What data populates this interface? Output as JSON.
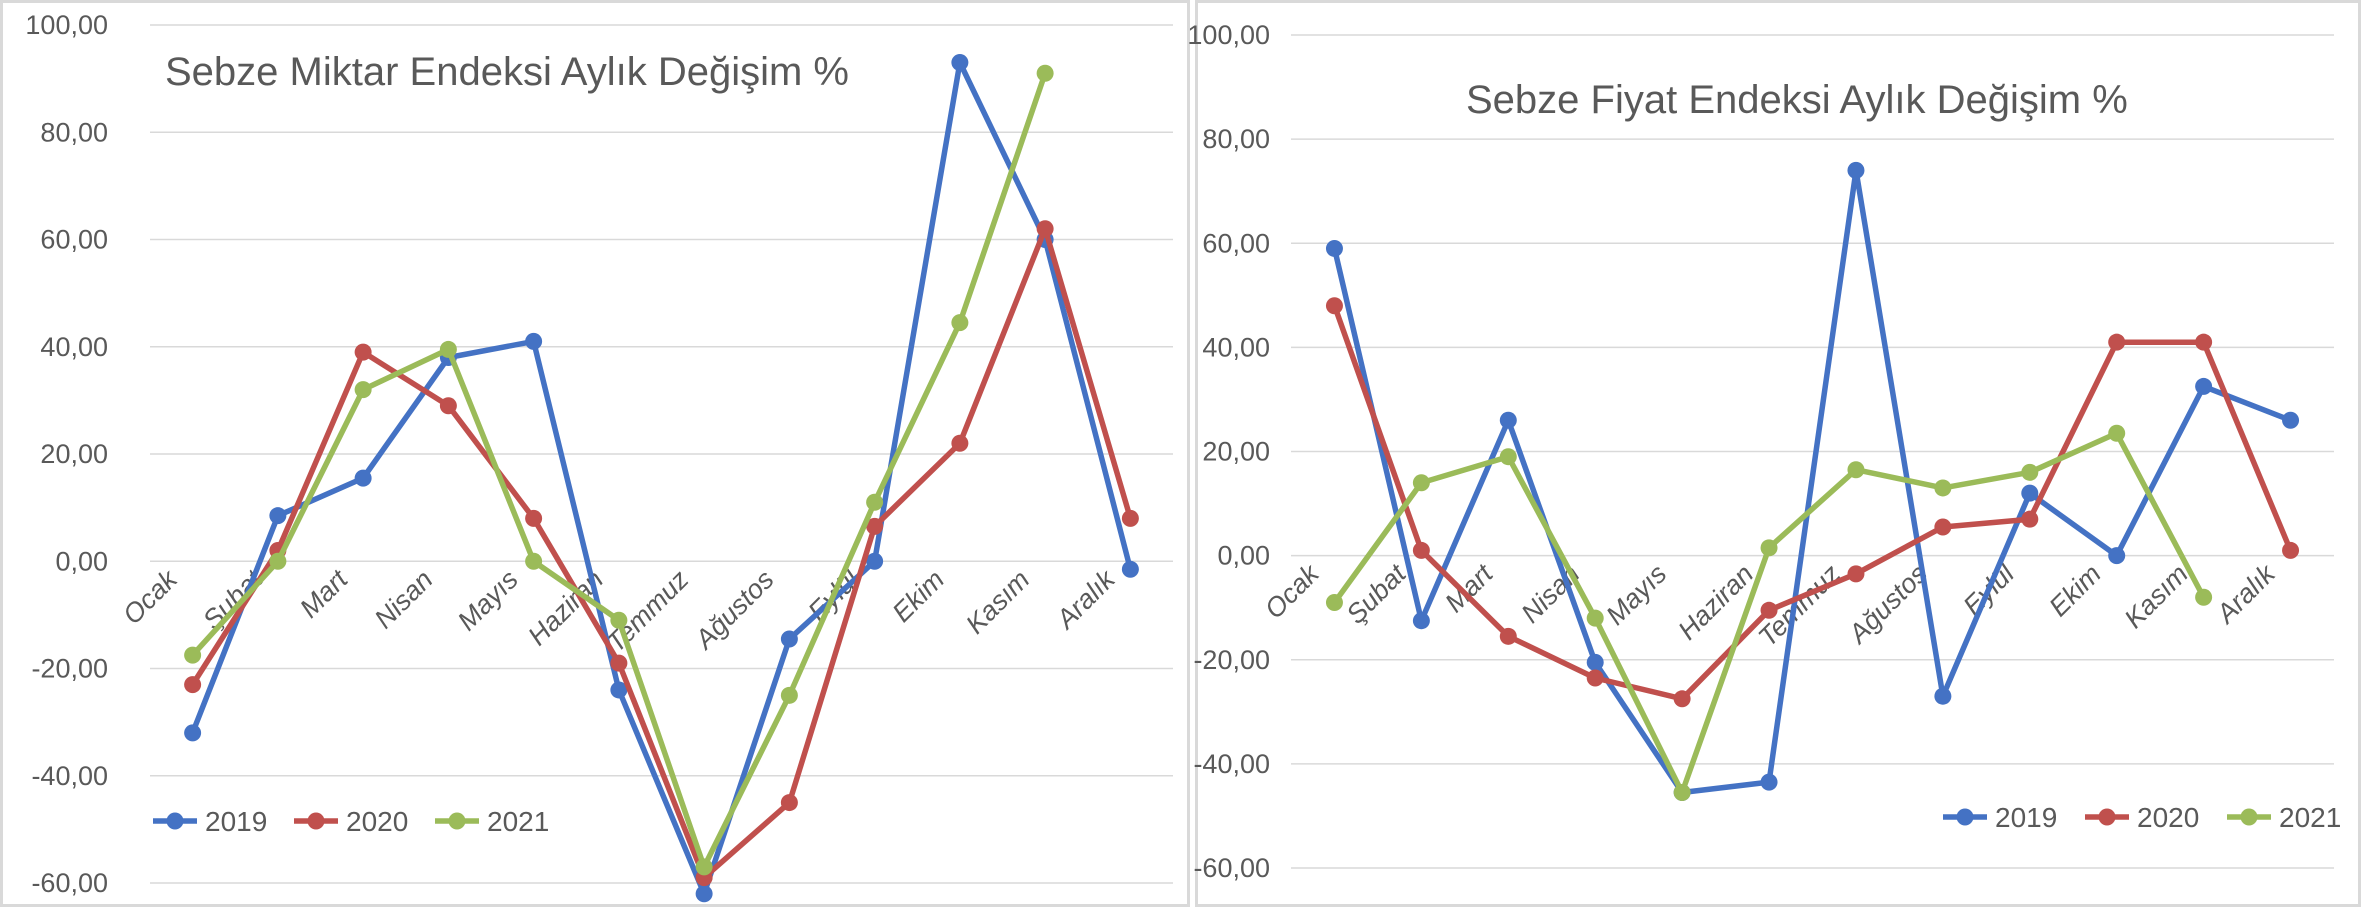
{
  "chart_data": [
    {
      "type": "line",
      "title": "Sebze  Miktar Endeksi Aylık Değişim %",
      "categories": [
        "Ocak",
        "Şubat",
        "Mart",
        "Nisan",
        "Mayıs",
        "Haziran",
        "Temmuz",
        "Ağustos",
        "Eylül",
        "Ekim",
        "Kasım",
        "Aralık"
      ],
      "y_ticks": [
        "100,00",
        "80,00",
        "60,00",
        "40,00",
        "20,00",
        "0,00",
        "-20,00",
        "-40,00",
        "-60,00"
      ],
      "ylim": [
        -60,
        100
      ],
      "grid": true,
      "legend_position": "bottom-left",
      "series": [
        {
          "name": "2019",
          "color": "#4472c4",
          "values": [
            -32,
            8.5,
            15.5,
            38,
            41,
            -24,
            -62,
            -14.5,
            0,
            93,
            60,
            -1.5
          ]
        },
        {
          "name": "2020",
          "color": "#c0504d",
          "values": [
            -23,
            2,
            39,
            29,
            8,
            -19,
            -59,
            -45,
            6.5,
            22,
            62,
            8
          ]
        },
        {
          "name": "2021",
          "color": "#9bbb59",
          "values": [
            -17.5,
            0,
            32,
            39.5,
            0,
            -11,
            -57,
            -25,
            11,
            44.5,
            91,
            null
          ]
        }
      ]
    },
    {
      "type": "line",
      "title": "Sebze  Fiyat Endeksi Aylık Değişim %",
      "categories": [
        "Ocak",
        "Şubat",
        "Mart",
        "Nisan",
        "Mayıs",
        "Haziran",
        "Temmuz",
        "Ağustos",
        "Eylül",
        "Ekim",
        "Kasım",
        "Aralık"
      ],
      "y_ticks": [
        "100,00",
        "80,00",
        "60,00",
        "40,00",
        "20,00",
        "0,00",
        "-20,00",
        "-40,00",
        "-60,00"
      ],
      "ylim": [
        -60,
        100
      ],
      "grid": true,
      "legend_position": "bottom-right",
      "series": [
        {
          "name": "2019",
          "color": "#4472c4",
          "values": [
            59,
            -12.5,
            26,
            -20.5,
            -45.5,
            -43.5,
            74,
            -27,
            12,
            0,
            32.5,
            26
          ]
        },
        {
          "name": "2020",
          "color": "#c0504d",
          "values": [
            48,
            1,
            -15.5,
            -23.5,
            -27.5,
            -10.5,
            -3.5,
            5.5,
            7,
            41,
            41,
            1
          ]
        },
        {
          "name": "2021",
          "color": "#9bbb59",
          "values": [
            -9,
            14,
            19,
            -12,
            -45.5,
            1.5,
            16.5,
            13,
            16,
            23.5,
            -8,
            null
          ]
        }
      ]
    }
  ]
}
